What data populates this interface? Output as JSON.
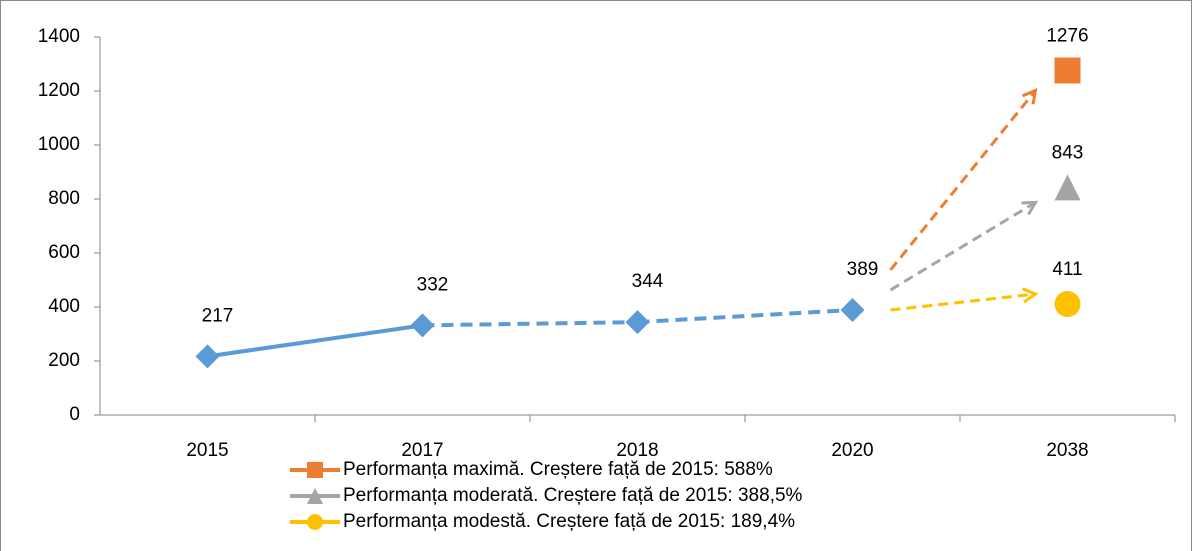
{
  "chart_data": {
    "type": "line",
    "categories": [
      "2015",
      "2017",
      "2018",
      "2020",
      "2038"
    ],
    "series": [
      {
        "color": "#5b9bd5",
        "marker": "diamond",
        "values": [
          217,
          332,
          344,
          389,
          null
        ]
      },
      {
        "name": "Performanța  maximă. Creștere față de 2015: 588%",
        "color": "#ed7d31",
        "marker": "square",
        "values": [
          null,
          null,
          null,
          null,
          1276
        ]
      },
      {
        "name": "Performanța moderată. Creștere față de 2015: 388,5%",
        "color": "#a5a5a5",
        "marker": "triangle",
        "values": [
          null,
          null,
          null,
          null,
          843
        ]
      },
      {
        "name": "Performanța modestă. Creștere față de 2015: 189,4%",
        "color": "#ffc000",
        "marker": "circle",
        "values": [
          null,
          null,
          null,
          null,
          411
        ]
      }
    ],
    "ylim": [
      0,
      1400
    ],
    "yticks": [
      0,
      200,
      400,
      600,
      800,
      1000,
      1200,
      1400
    ],
    "legend": "bottom"
  }
}
